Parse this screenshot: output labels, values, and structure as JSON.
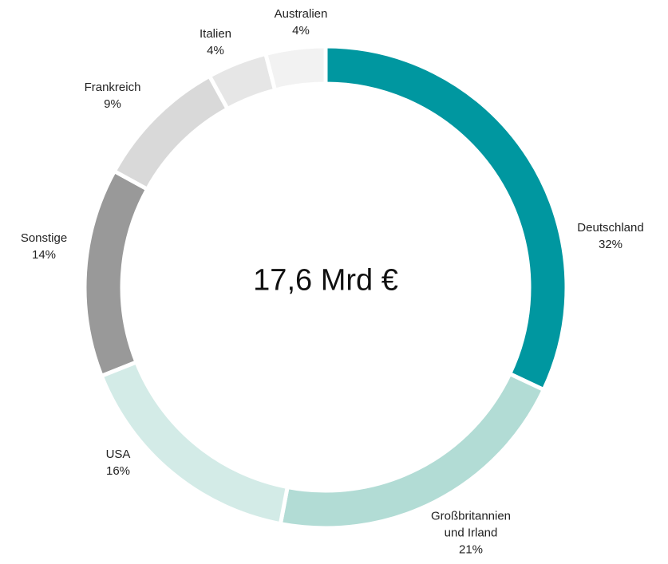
{
  "chart_data": {
    "type": "donut",
    "center_text": "17,6 Mrd €",
    "categories": [
      "Deutschland",
      "Großbritannien und Irland",
      "USA",
      "Sonstige",
      "Frankreich",
      "Italien",
      "Australien"
    ],
    "values": [
      32,
      21,
      16,
      14,
      9,
      4,
      4
    ],
    "value_labels": [
      "32%",
      "21%",
      "16%",
      "14%",
      "9%",
      "4%",
      "4%"
    ],
    "colors": [
      "#0097a0",
      "#b2dcd5",
      "#d3ebe7",
      "#999999",
      "#d9d9d9",
      "#e6e6e6",
      "#f2f2f2"
    ]
  }
}
